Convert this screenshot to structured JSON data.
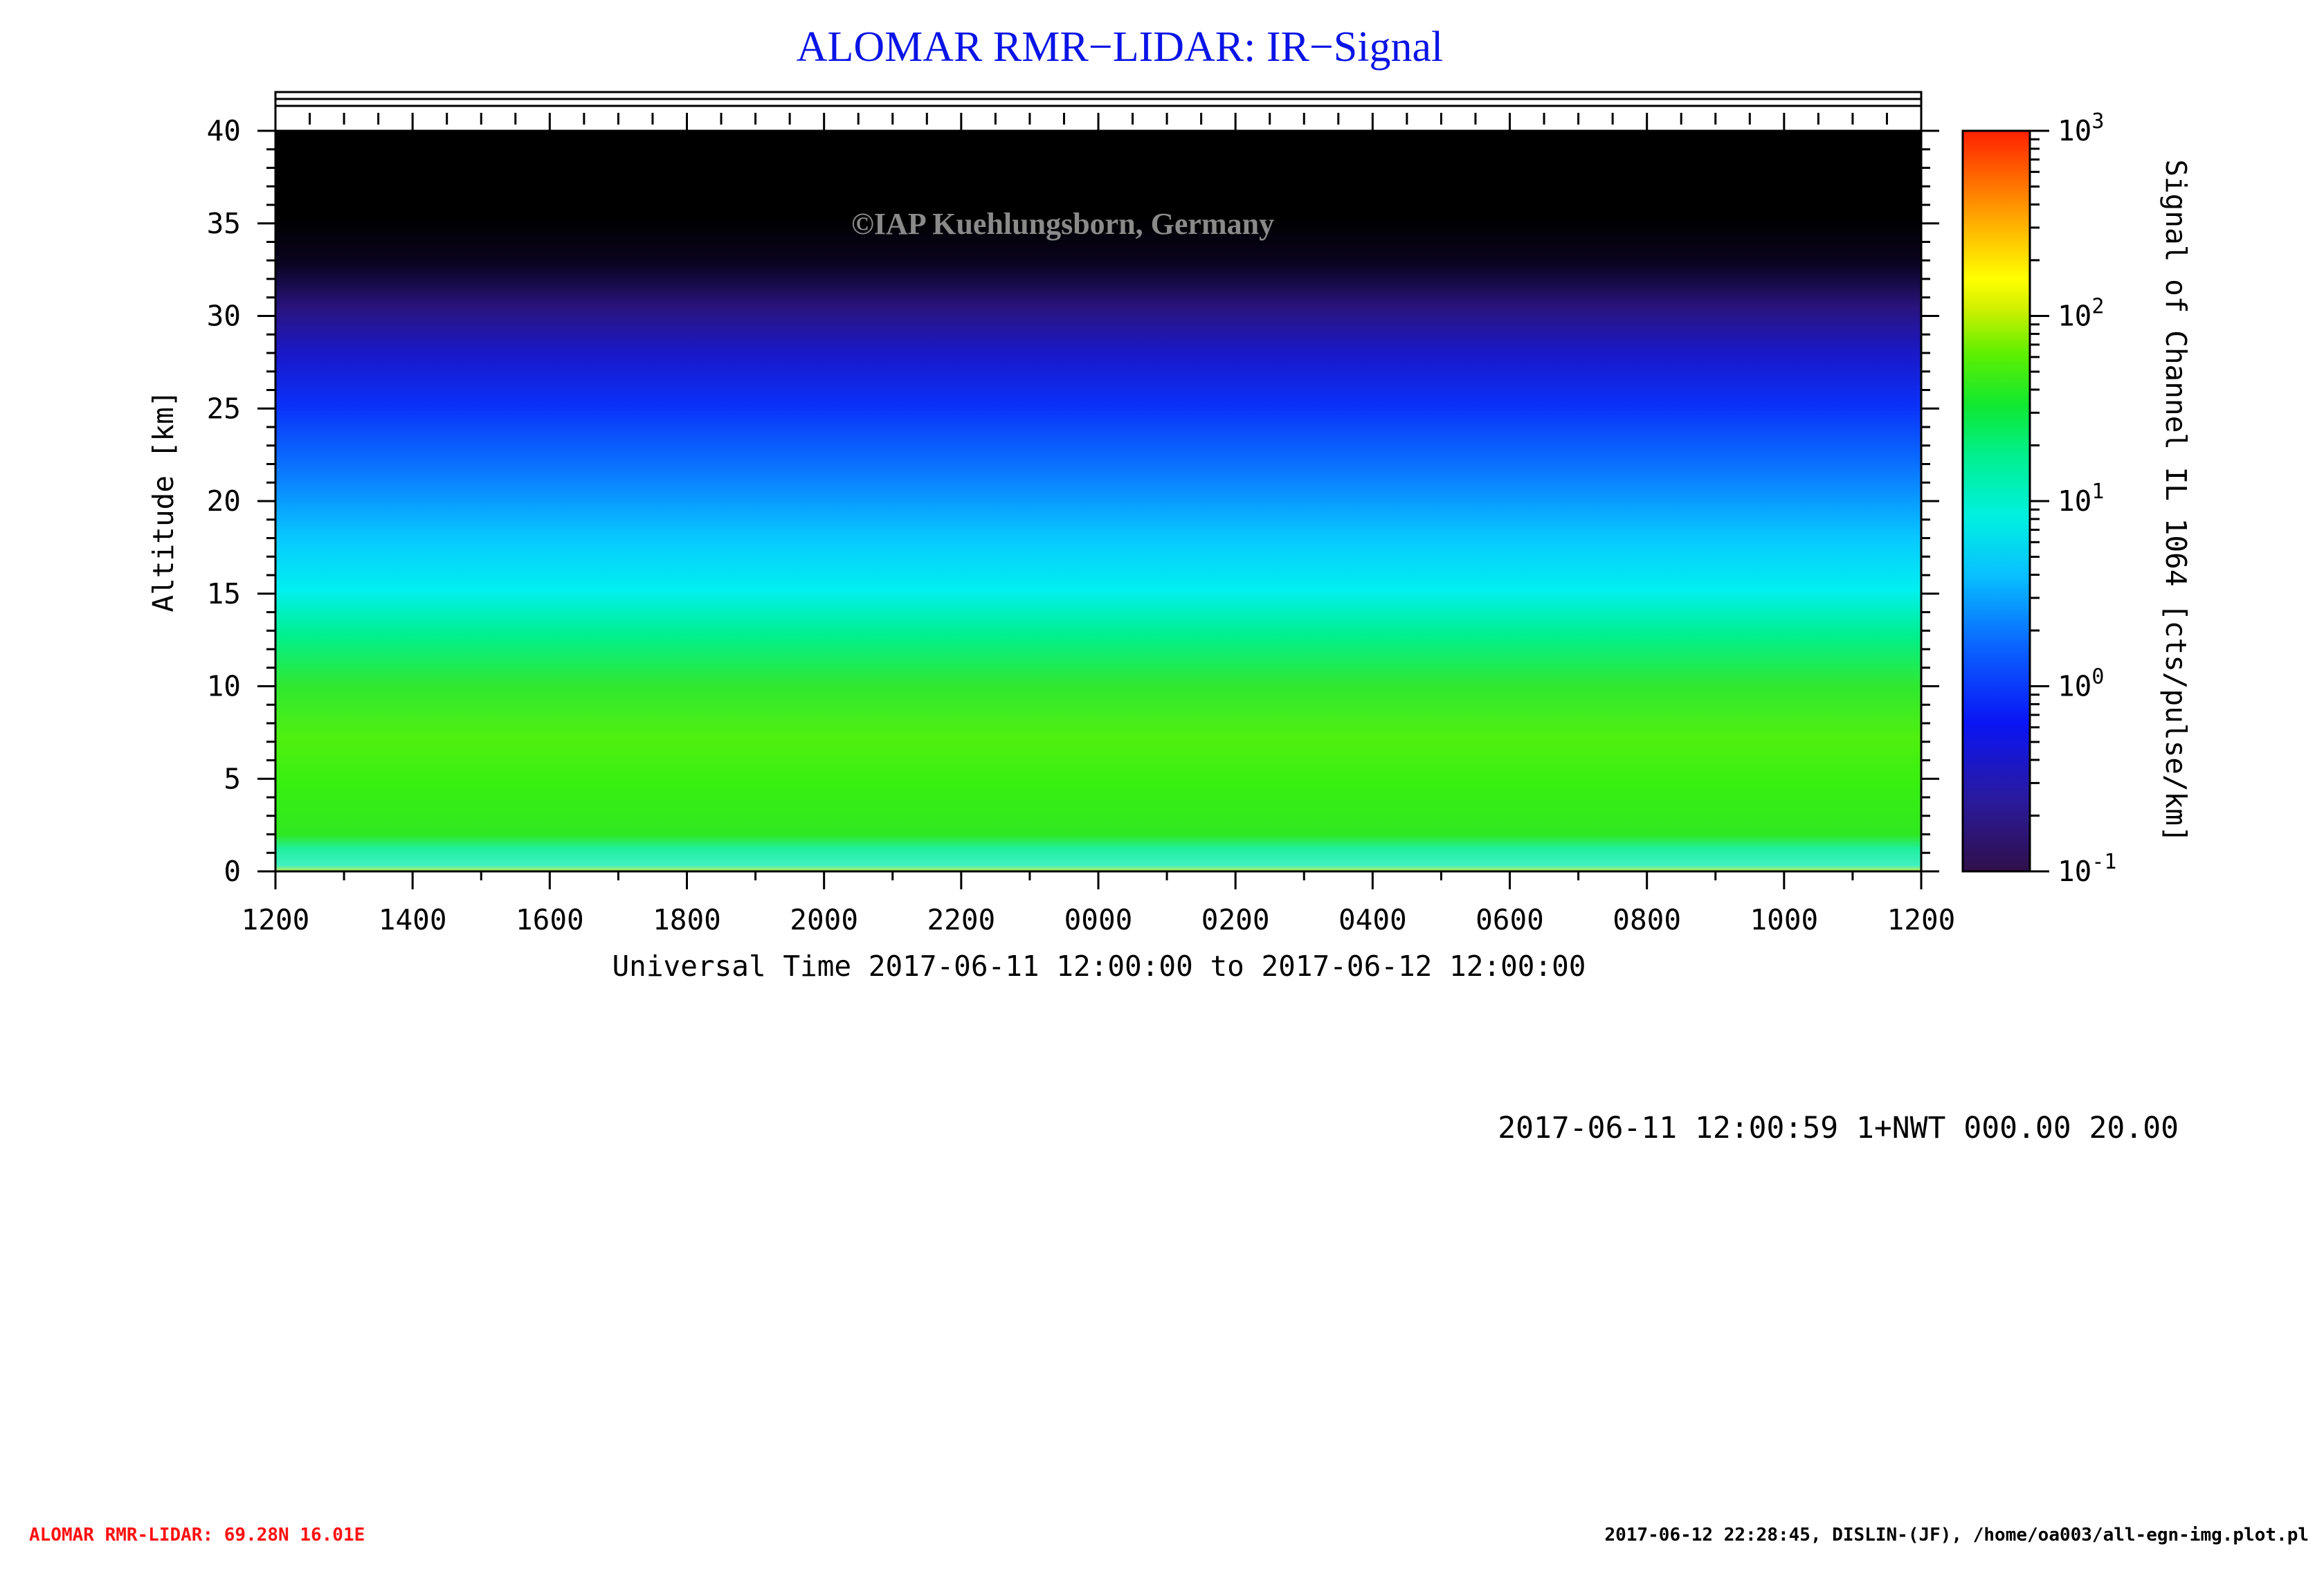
{
  "chart_data": {
    "type": "heatmap",
    "title": "ALOMAR RMR−LIDAR: IR−Signal",
    "xlabel": "Universal Time 2017-06-11 12:00:00 to 2017-06-12 12:00:00",
    "ylabel": "Altitude [km]",
    "colorbar_label": "Signal of Channel IL 1064 [cts/pulse/km]",
    "x_tick_labels": [
      "1200",
      "1400",
      "1600",
      "1800",
      "2000",
      "2200",
      "0000",
      "0200",
      "0400",
      "0600",
      "0800",
      "1000",
      "1200"
    ],
    "y_ticks": [
      0,
      5,
      10,
      15,
      20,
      25,
      30,
      35,
      40
    ],
    "ylim": [
      0,
      40
    ],
    "colorbar_scale": "log",
    "colorbar_range": [
      0.1,
      1000
    ],
    "colorbar_ticks": [
      {
        "base": "10",
        "exp": "3",
        "value": 1000
      },
      {
        "base": "10",
        "exp": "2",
        "value": 100
      },
      {
        "base": "10",
        "exp": "1",
        "value": 10
      },
      {
        "base": "10",
        "exp": "0",
        "value": 1
      },
      {
        "base": "10",
        "exp": "-1",
        "value": 0.1
      }
    ],
    "colormap": [
      "#30104a",
      "#2a1aa0",
      "#0a14f5",
      "#0a50ff",
      "#08b4ff",
      "#00f0ff",
      "#00f0a0",
      "#10e830",
      "#30f010",
      "#a0f000",
      "#ffff00",
      "#ffc000",
      "#ff7000",
      "#ff2000"
    ],
    "profile": [
      {
        "altitude": 0.2,
        "signal": 10
      },
      {
        "altitude": 1,
        "signal": 3
      },
      {
        "altitude": 2,
        "signal": 12
      },
      {
        "altitude": 5,
        "signal": 15
      },
      {
        "altitude": 8,
        "signal": 15
      },
      {
        "altitude": 11,
        "signal": 8
      },
      {
        "altitude": 13,
        "signal": 4
      },
      {
        "altitude": 15,
        "signal": 2
      },
      {
        "altitude": 18,
        "signal": 1
      },
      {
        "altitude": 21,
        "signal": 0.6
      },
      {
        "altitude": 25,
        "signal": 0.35
      },
      {
        "altitude": 28,
        "signal": 0.2
      },
      {
        "altitude": 30,
        "signal": 0.13
      },
      {
        "altitude": 33,
        "signal": 0.1
      },
      {
        "altitude": 40,
        "signal": 0.1
      }
    ]
  },
  "watermark": "©IAP Kuehlungsborn, Germany",
  "info_line": "2017-06-11 12:00:59 1+NWT 000.00 20.00",
  "footer": {
    "left": "ALOMAR RMR-LIDAR: 69.28N 16.01E",
    "right": "2017-06-12 22:28:45, DISLIN-(JF), /home/oa003/all-egn-img.plot.pl"
  },
  "colors": {
    "title": "#0a14e6",
    "footer_left": "#ff1010",
    "watermark": "#8a8a8a"
  }
}
